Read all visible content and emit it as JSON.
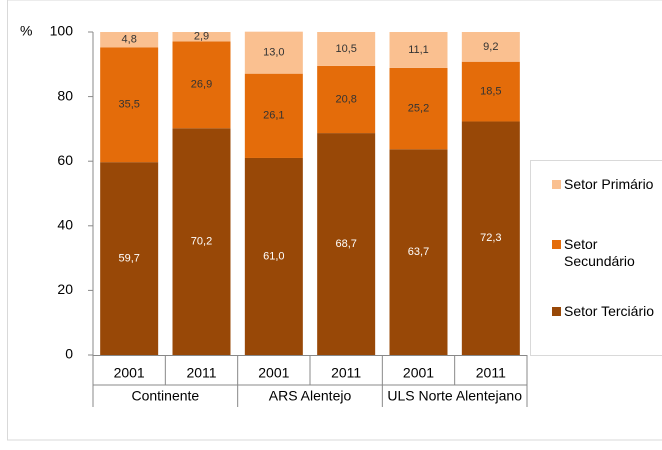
{
  "chart_data": {
    "type": "stacked_bar",
    "y_label": "%",
    "categories": [
      "2001",
      "2011",
      "2001",
      "2011",
      "2001",
      "2011"
    ],
    "groups": [
      "Continente",
      "ARS Alentejo",
      "ULS Norte Alentejano"
    ],
    "series": [
      {
        "name": "Setor Terciário",
        "color": "#984807",
        "label_color": "#ffffff",
        "values": [
          59.7,
          70.2,
          61.0,
          68.7,
          63.7,
          72.3
        ],
        "value_labels": [
          "59,7",
          "70,2",
          "61,0",
          "68,7",
          "63,7",
          "72,3"
        ]
      },
      {
        "name": "Setor Secundário",
        "color": "#e46c0a",
        "label_color": "#333333",
        "values": [
          35.5,
          26.9,
          26.1,
          20.8,
          25.2,
          18.5
        ],
        "value_labels": [
          "35,5",
          "26,9",
          "26,1",
          "20,8",
          "25,2",
          "18,5"
        ]
      },
      {
        "name": "Setor Primário",
        "color": "#fac090",
        "label_color": "#333333",
        "values": [
          4.8,
          2.9,
          13.0,
          10.5,
          11.1,
          9.2
        ],
        "value_labels": [
          "4,8",
          "2,9",
          "13,0",
          "10,5",
          "11,1",
          "9,2"
        ]
      }
    ],
    "ylim": [
      0,
      100
    ],
    "yticks": [
      0,
      20,
      40,
      60,
      80,
      100
    ]
  }
}
